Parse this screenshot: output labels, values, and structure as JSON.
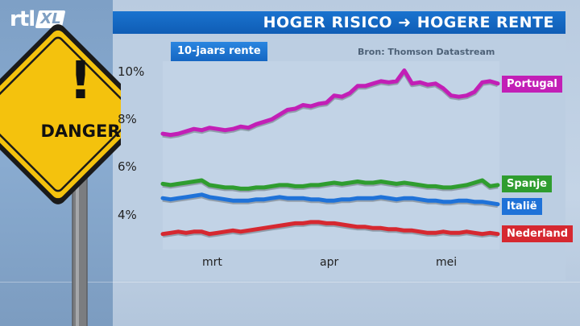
{
  "header": {
    "logo_main": "rtl",
    "logo_sub": "XL",
    "title": "HOGER RISICO ➜ HOGERE RENTE"
  },
  "sign": {
    "text": "DANGER",
    "exclamation": "!"
  },
  "colors": {
    "title_bar": "#1465c4",
    "portugal": "#c21fb6",
    "spanje": "#2f9d2f",
    "italie": "#1f72d8",
    "nederland": "#d62830",
    "sign_yellow": "#f4c20d"
  },
  "chart_data": {
    "type": "line",
    "title": "10-jaars rente",
    "source": "Bron: Thomson Datastream",
    "x_ticks": [
      "mrt",
      "apr",
      "mei"
    ],
    "y_ticks": [
      "10%",
      "8%",
      "6%",
      "4%"
    ],
    "ylim": [
      2.5,
      11
    ],
    "grid": false,
    "legend": "right, at line ends",
    "series": [
      {
        "name": "Portugal",
        "color": "#c21fb6",
        "values": [
          7.4,
          7.35,
          7.4,
          7.5,
          7.6,
          7.55,
          7.65,
          7.6,
          7.55,
          7.6,
          7.7,
          7.65,
          7.8,
          7.9,
          8.0,
          8.2,
          8.4,
          8.45,
          8.6,
          8.55,
          8.65,
          8.7,
          9.0,
          8.95,
          9.1,
          9.4,
          9.4,
          9.5,
          9.6,
          9.55,
          9.6,
          10.05,
          9.5,
          9.55,
          9.45,
          9.5,
          9.3,
          9.0,
          8.95,
          9.0,
          9.15,
          9.55,
          9.6,
          9.5
        ]
      },
      {
        "name": "Spanje",
        "color": "#2f9d2f",
        "values": [
          5.3,
          5.25,
          5.3,
          5.35,
          5.4,
          5.45,
          5.25,
          5.2,
          5.15,
          5.15,
          5.1,
          5.1,
          5.15,
          5.15,
          5.2,
          5.25,
          5.25,
          5.2,
          5.2,
          5.25,
          5.25,
          5.3,
          5.35,
          5.3,
          5.35,
          5.4,
          5.35,
          5.35,
          5.4,
          5.35,
          5.3,
          5.35,
          5.3,
          5.25,
          5.2,
          5.2,
          5.15,
          5.15,
          5.2,
          5.25,
          5.35,
          5.45,
          5.2,
          5.25
        ]
      },
      {
        "name": "Italië",
        "color": "#1f72d8",
        "values": [
          4.7,
          4.65,
          4.7,
          4.75,
          4.8,
          4.85,
          4.75,
          4.7,
          4.65,
          4.6,
          4.6,
          4.6,
          4.65,
          4.65,
          4.7,
          4.75,
          4.7,
          4.7,
          4.7,
          4.65,
          4.65,
          4.6,
          4.6,
          4.65,
          4.65,
          4.7,
          4.7,
          4.7,
          4.75,
          4.7,
          4.65,
          4.7,
          4.7,
          4.65,
          4.6,
          4.6,
          4.55,
          4.55,
          4.6,
          4.6,
          4.55,
          4.55,
          4.5,
          4.45
        ]
      },
      {
        "name": "Nederland",
        "color": "#d62830",
        "values": [
          3.2,
          3.25,
          3.3,
          3.25,
          3.3,
          3.3,
          3.2,
          3.25,
          3.3,
          3.35,
          3.3,
          3.35,
          3.4,
          3.45,
          3.5,
          3.55,
          3.6,
          3.65,
          3.65,
          3.7,
          3.7,
          3.65,
          3.65,
          3.6,
          3.55,
          3.5,
          3.5,
          3.45,
          3.45,
          3.4,
          3.4,
          3.35,
          3.35,
          3.3,
          3.25,
          3.25,
          3.3,
          3.25,
          3.25,
          3.3,
          3.25,
          3.2,
          3.25,
          3.2
        ]
      }
    ]
  }
}
